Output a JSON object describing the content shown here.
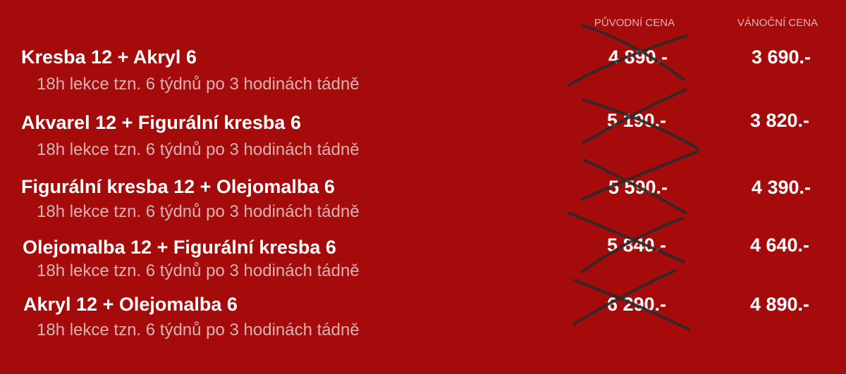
{
  "headers": {
    "original": "PŮVODNÍ CENA",
    "christmas": "VÁNOČNÍ CENA"
  },
  "colors": {
    "background": "#a50b0b",
    "cross": "#2a2a2a"
  },
  "courses": [
    {
      "title": "Kresba 12 + Akryl 6",
      "subtitle": "18h lekce tzn. 6 týdnů po 3 hodinách tádně",
      "original_price": "4 890.-",
      "christmas_price": "3 690.-"
    },
    {
      "title": "Akvarel 12 + Figurální kresba 6",
      "subtitle": "18h lekce tzn. 6 týdnů po 3 hodinách tádně",
      "original_price": "5 190.-",
      "christmas_price": "3 820.-"
    },
    {
      "title": "Figurální kresba 12 + Olejomalba 6",
      "subtitle": "18h lekce tzn. 6 týdnů po 3 hodinách tádně",
      "original_price": "5 590.-",
      "christmas_price": "4 390.-"
    },
    {
      "title": "Olejomalba 12 + Figurální kresba 6",
      "subtitle": "18h lekce tzn. 6 týdnů po 3 hodinách tádně",
      "original_price": "5 840.-",
      "christmas_price": "4 640.-"
    },
    {
      "title": "Akryl 12 + Olejomalba 6",
      "subtitle": "18h lekce tzn. 6 týdnů po 3 hodinách tádně",
      "original_price": "6 290.-",
      "christmas_price": "4 890.-"
    }
  ]
}
